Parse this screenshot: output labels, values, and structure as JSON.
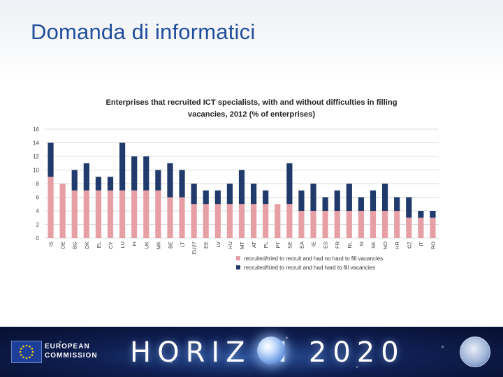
{
  "slide_title": "Domanda di informatici",
  "chart_data": {
    "type": "bar",
    "stacked": true,
    "title_lines": [
      "Enterprises that recruited ICT specialists, with and without difficulties in filling",
      "vacancies, 2012 (% of enterprises)"
    ],
    "xlabel": "",
    "ylabel": "",
    "ylim": [
      0,
      16
    ],
    "yticks": [
      0,
      2,
      4,
      6,
      8,
      10,
      12,
      14,
      16
    ],
    "grid": true,
    "legend_position": "bottom",
    "categories": [
      "IS",
      "DE",
      "BG",
      "DK",
      "EL",
      "CY",
      "LU",
      "FI",
      "UK",
      "MK",
      "BE",
      "LT",
      "EU27",
      "EE",
      "LV",
      "HU",
      "MT",
      "AT",
      "PL",
      "PT",
      "SE",
      "EA",
      "IE",
      "ES",
      "FR",
      "NL",
      "SI",
      "SK",
      "NO",
      "HR",
      "CZ",
      "IT",
      "RO"
    ],
    "series": [
      {
        "name": "recruited/tried to recruit and had no hard to fill vacancies",
        "color": "#e6a0a5",
        "values": [
          9,
          8,
          7,
          7,
          7,
          7,
          7,
          7,
          7,
          7,
          6,
          6,
          5,
          5,
          5,
          5,
          5,
          5,
          5,
          5,
          5,
          4,
          4,
          4,
          4,
          4,
          4,
          4,
          4,
          4,
          3,
          3,
          3
        ]
      },
      {
        "name": "recruited/tried to recruit and had hard to fill vacancies",
        "color": "#1f3a6b",
        "values": [
          5,
          0,
          3,
          4,
          2,
          2,
          7,
          5,
          5,
          3,
          5,
          4,
          3,
          2,
          2,
          3,
          5,
          3,
          2,
          0,
          6,
          3,
          4,
          2,
          3,
          4,
          2,
          3,
          4,
          2,
          3,
          1,
          1
        ]
      }
    ]
  },
  "footer": {
    "org_line1": "EUROPEAN",
    "org_line2": "COMMISSION",
    "program": "HORIZ  N 2020"
  },
  "icons": {
    "eu_flag": "eu-flag-icon",
    "globe": "globe-icon",
    "innovation_union": "innovation-union-logo"
  }
}
